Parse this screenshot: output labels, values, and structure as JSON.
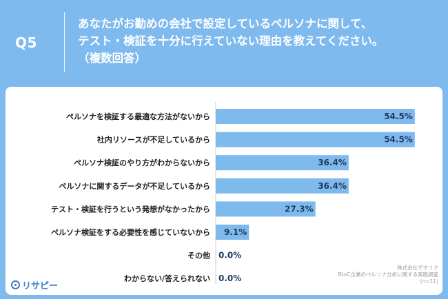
{
  "header": {
    "question_number": "Q5",
    "question_lines": [
      "あなたがお勤めの会社で設定しているペルソナに関して、",
      "テスト・検証を十分に行えていない理由を教えてください。",
      "（複数回答）"
    ]
  },
  "colors": {
    "background": "#7fbaee",
    "bar": "#7fbaee",
    "panel": "#ffffff"
  },
  "chart_data": {
    "type": "bar",
    "orientation": "horizontal",
    "categories": [
      "ペルソナを検証する最適な方法がないから",
      "社内リソースが不足しているから",
      "ペルソナ検証のやり方がわからないから",
      "ペルソナに関するデータが不足しているから",
      "テスト・検証を行うという発想がなかったから",
      "ペルソナ検証をする必要性を感じていないから",
      "その他",
      "わからない/答えられない"
    ],
    "values": [
      54.5,
      54.5,
      36.4,
      36.4,
      27.3,
      9.1,
      0.0,
      0.0
    ],
    "value_labels": [
      "54.5%",
      "54.5%",
      "36.4%",
      "36.4%",
      "27.3%",
      "9.1%",
      "0.0%",
      "0.0%"
    ],
    "xlim": [
      0,
      100
    ],
    "grid": false,
    "legend": "none"
  },
  "footer": {
    "logo_text": "リサピー",
    "source_lines": [
      "株式会社ザオリク",
      "BtoC企業のペルソナ分析に関する実態調査",
      "(n=11)"
    ]
  }
}
